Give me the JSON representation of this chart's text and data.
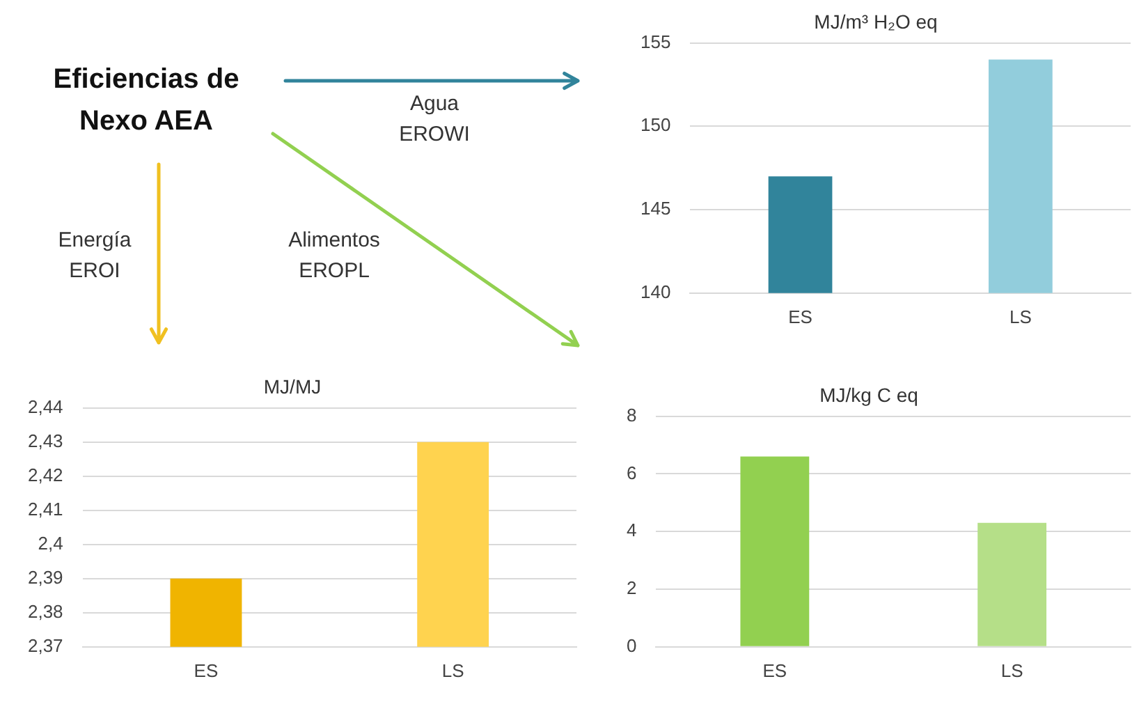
{
  "chart_data": [
    {
      "type": "other",
      "title": "Eficiencias de Nexo AEA",
      "annotations": [
        "Agua EROWI",
        "Energía EROI",
        "Alimentos EROPL"
      ]
    },
    {
      "type": "bar",
      "title": "MJ/m³ H₂O eq",
      "categories": [
        "ES",
        "LS"
      ],
      "values": [
        147,
        154
      ],
      "colors": [
        "#31849b",
        "#92cddc"
      ],
      "ylim": [
        140,
        155
      ],
      "yticks": [
        140,
        145,
        150,
        155
      ],
      "grid": "y"
    },
    {
      "type": "bar",
      "title": "MJ/MJ",
      "categories": [
        "ES",
        "LS"
      ],
      "values": [
        2.39,
        2.43
      ],
      "colors": [
        "#f0b400",
        "#ffd34f"
      ],
      "ylim": [
        2.37,
        2.44
      ],
      "yticks": [
        {
          "value": 2.37,
          "label": "2,37"
        },
        {
          "value": 2.38,
          "label": "2,38"
        },
        {
          "value": 2.39,
          "label": "2,39"
        },
        {
          "value": 2.4,
          "label": "2,4"
        },
        {
          "value": 2.41,
          "label": "2,41"
        },
        {
          "value": 2.42,
          "label": "2,42"
        },
        {
          "value": 2.43,
          "label": "2,43"
        },
        {
          "value": 2.44,
          "label": "2,44"
        }
      ],
      "grid": "y"
    },
    {
      "type": "bar",
      "title": "MJ/kg C eq",
      "categories": [
        "ES",
        "LS"
      ],
      "values": [
        6.6,
        4.3
      ],
      "colors": [
        "#92d050",
        "#b5df88"
      ],
      "ylim": [
        0,
        8
      ],
      "yticks": [
        0,
        2,
        4,
        6,
        8
      ],
      "grid": "y"
    }
  ]
}
